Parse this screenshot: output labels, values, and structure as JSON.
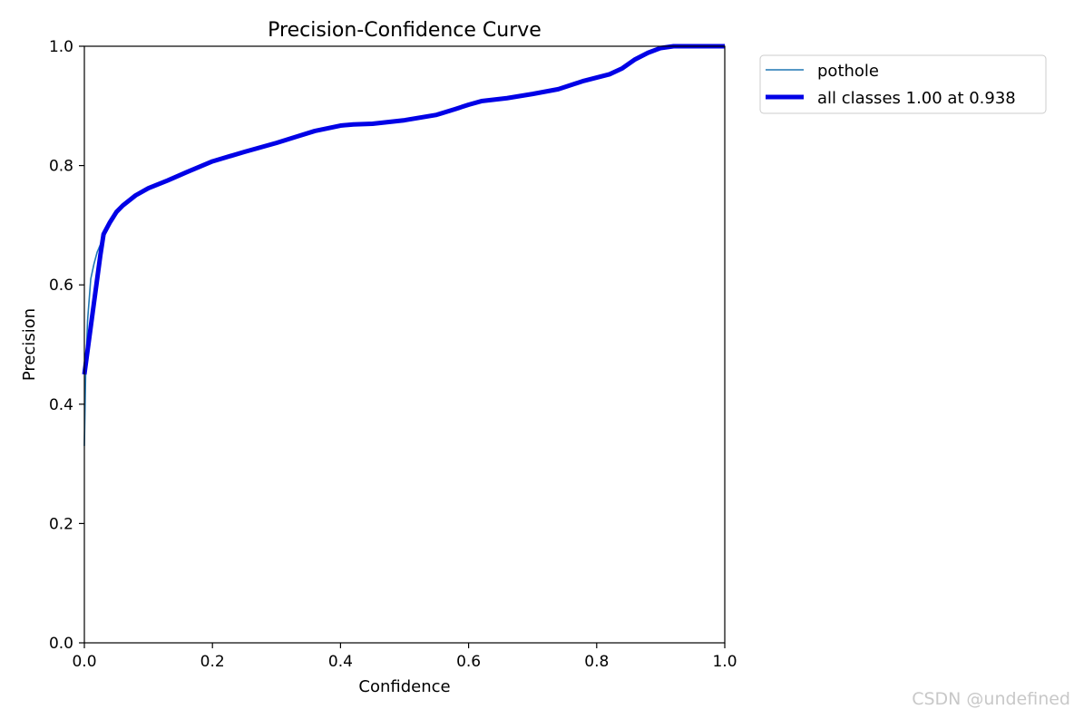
{
  "chart_data": {
    "type": "line",
    "title": "Precision-Confidence Curve",
    "xlabel": "Confidence",
    "ylabel": "Precision",
    "xlim": [
      0,
      1
    ],
    "ylim": [
      0,
      1
    ],
    "xticks": [
      "0.0",
      "0.2",
      "0.4",
      "0.6",
      "0.8",
      "1.0"
    ],
    "yticks": [
      "0.0",
      "0.2",
      "0.4",
      "0.6",
      "0.8",
      "1.0"
    ],
    "grid": false,
    "legend_position": "outside-top-right",
    "series": [
      {
        "name": "pothole",
        "color": "#1f77b4",
        "x": [
          0.0,
          0.002,
          0.005,
          0.01,
          0.015,
          0.02,
          0.03,
          0.04,
          0.05,
          0.06,
          0.08,
          0.1,
          0.13,
          0.16,
          0.2,
          0.25,
          0.3,
          0.33,
          0.36,
          0.4,
          0.45,
          0.5,
          0.55,
          0.58,
          0.62,
          0.66,
          0.7,
          0.74,
          0.78,
          0.82,
          0.84,
          0.86,
          0.88,
          0.9,
          0.92,
          0.94,
          1.0
        ],
        "y": [
          0.33,
          0.45,
          0.54,
          0.61,
          0.635,
          0.655,
          0.68,
          0.705,
          0.72,
          0.733,
          0.75,
          0.762,
          0.775,
          0.79,
          0.807,
          0.824,
          0.838,
          0.85,
          0.858,
          0.868,
          0.872,
          0.877,
          0.884,
          0.895,
          0.907,
          0.913,
          0.92,
          0.93,
          0.943,
          0.953,
          0.962,
          0.98,
          0.99,
          0.995,
          1.0,
          1.0,
          1.0
        ]
      },
      {
        "name": "all classes 1.00 at 0.938",
        "color": "#0000e6",
        "x": [
          0.0,
          0.005,
          0.01,
          0.015,
          0.02,
          0.025,
          0.03,
          0.04,
          0.05,
          0.06,
          0.08,
          0.1,
          0.13,
          0.16,
          0.2,
          0.25,
          0.3,
          0.33,
          0.36,
          0.4,
          0.42,
          0.45,
          0.5,
          0.55,
          0.58,
          0.6,
          0.62,
          0.66,
          0.7,
          0.74,
          0.78,
          0.82,
          0.84,
          0.86,
          0.88,
          0.9,
          0.92,
          0.938,
          1.0
        ],
        "y": [
          0.45,
          0.49,
          0.53,
          0.57,
          0.61,
          0.65,
          0.685,
          0.705,
          0.722,
          0.733,
          0.75,
          0.762,
          0.775,
          0.789,
          0.807,
          0.823,
          0.838,
          0.848,
          0.858,
          0.867,
          0.869,
          0.87,
          0.876,
          0.885,
          0.895,
          0.902,
          0.908,
          0.913,
          0.92,
          0.928,
          0.942,
          0.953,
          0.963,
          0.978,
          0.989,
          0.997,
          1.0,
          1.0,
          1.0
        ]
      }
    ]
  },
  "watermark": "CSDN @undefined"
}
